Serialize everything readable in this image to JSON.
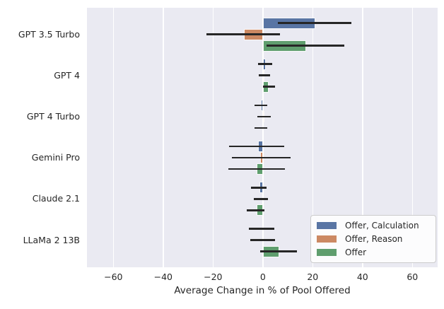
{
  "colors": {
    "plot_background": "#eaeaf2",
    "figure_background": "#ffffff",
    "grid": "#ffffff",
    "error_bar": "#262626",
    "text": "#262626",
    "legend_background": "#fcfcfd",
    "legend_border": "#cccccc",
    "bar_edge": "#ffffff"
  },
  "chart_data": {
    "type": "bar",
    "orientation": "horizontal",
    "title": "",
    "xlabel": "Average Change in % of Pool Offered",
    "ylabel": "",
    "grid": true,
    "legend_position": "lower right",
    "categories": [
      "GPT 3.5 Turbo",
      "GPT 4",
      "GPT 4 Turbo",
      "Gemini Pro",
      "Claude 2.1",
      "LLaMa 2 13B"
    ],
    "x_ticks": [
      -60,
      -40,
      -20,
      0,
      20,
      40,
      60
    ],
    "x_tick_labels": [
      "−60",
      "−40",
      "−20",
      "0",
      "20",
      "40",
      "60"
    ],
    "xlim": [
      -70.5,
      70
    ],
    "series": [
      {
        "name": "Offer, Calculation",
        "color": "#5975a4",
        "values": [
          21,
          1.3,
          -0.8,
          -2,
          -1.3,
          0
        ],
        "error_intervals": [
          [
            6,
            35.5
          ],
          [
            -2,
            3.7
          ],
          [
            -3.3,
            1.8
          ],
          [
            -13.5,
            8.7
          ],
          [
            -4.7,
            1.4
          ],
          [
            -5.5,
            4.6
          ]
        ]
      },
      {
        "name": "Offer, Reason",
        "color": "#cc8963",
        "values": [
          -7.6,
          0.7,
          0.3,
          -1,
          0,
          0
        ],
        "error_intervals": [
          [
            -22.7,
            6.9
          ],
          [
            -1.7,
            3
          ],
          [
            -2.2,
            3.1
          ],
          [
            -12.3,
            11.1
          ],
          [
            -3.5,
            2.1
          ],
          [
            -5.1,
            4.9
          ]
        ]
      },
      {
        "name": "Offer",
        "color": "#5f9e6e",
        "values": [
          17.5,
          2.4,
          -0.2,
          -2.4,
          -2.5,
          6.6
        ],
        "error_intervals": [
          [
            1.4,
            32.8
          ],
          [
            0.1,
            4.9
          ],
          [
            -3.3,
            1.7
          ],
          [
            -13.8,
            8.9
          ],
          [
            -6.5,
            0.7
          ],
          [
            -1.2,
            13.8
          ]
        ]
      }
    ]
  }
}
